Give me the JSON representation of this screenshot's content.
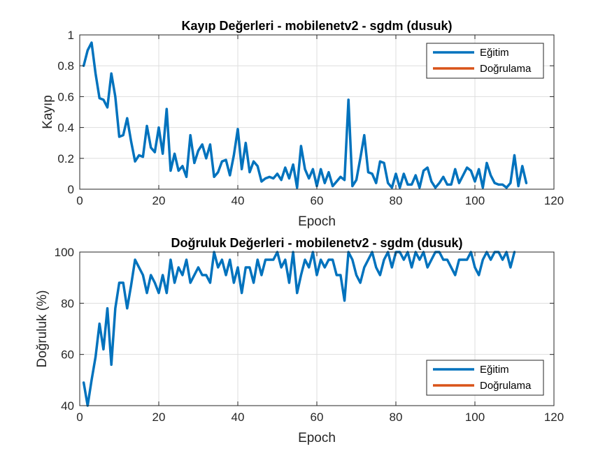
{
  "chart_data": [
    {
      "type": "line",
      "title": "Kayıp Değerleri - mobilenetv2 - sgdm (dusuk)",
      "xlabel": "Epoch",
      "ylabel": "Kayıp",
      "xlim": [
        0,
        120
      ],
      "ylim": [
        0,
        1
      ],
      "xticks": [
        "0",
        "20",
        "40",
        "60",
        "80",
        "100",
        "120"
      ],
      "yticks": [
        "0",
        "0.2",
        "0.4",
        "0.6",
        "0.8",
        "1"
      ],
      "grid": true,
      "legend_position": "top-right",
      "series": [
        {
          "name": "Eğitim",
          "color": "#0072BD",
          "values": [
            0.8,
            0.9,
            0.95,
            0.75,
            0.59,
            0.58,
            0.53,
            0.75,
            0.6,
            0.34,
            0.35,
            0.46,
            0.31,
            0.18,
            0.22,
            0.21,
            0.41,
            0.27,
            0.24,
            0.4,
            0.23,
            0.52,
            0.12,
            0.23,
            0.12,
            0.15,
            0.08,
            0.35,
            0.17,
            0.25,
            0.29,
            0.2,
            0.29,
            0.08,
            0.11,
            0.18,
            0.19,
            0.09,
            0.22,
            0.39,
            0.13,
            0.3,
            0.11,
            0.18,
            0.15,
            0.05,
            0.07,
            0.08,
            0.07,
            0.1,
            0.06,
            0.14,
            0.07,
            0.16,
            0.01,
            0.28,
            0.13,
            0.07,
            0.13,
            0.02,
            0.13,
            0.04,
            0.11,
            0.02,
            0.05,
            0.08,
            0.06,
            0.58,
            0.02,
            0.06,
            0.2,
            0.35,
            0.11,
            0.1,
            0.04,
            0.18,
            0.17,
            0.04,
            0.01,
            0.1,
            0.01,
            0.1,
            0.03,
            0.03,
            0.09,
            0.01,
            0.12,
            0.14,
            0.05,
            0.01,
            0.04,
            0.08,
            0.03,
            0.03,
            0.13,
            0.04,
            0.09,
            0.14,
            0.12,
            0.05,
            0.13,
            0.01,
            0.17,
            0.09,
            0.04,
            0.03,
            0.03,
            0.01,
            0.04,
            0.22,
            0.02,
            0.15,
            0.04
          ]
        },
        {
          "name": "Doğrulama",
          "color": "#D95319",
          "values": []
        }
      ]
    },
    {
      "type": "line",
      "title": "Doğruluk Değerleri - mobilenetv2 - sgdm (dusuk)",
      "xlabel": "Epoch",
      "ylabel": "Doğruluk (%)",
      "xlim": [
        0,
        120
      ],
      "ylim": [
        40,
        100
      ],
      "xticks": [
        "0",
        "20",
        "40",
        "60",
        "80",
        "100",
        "120"
      ],
      "yticks": [
        "40",
        "60",
        "80",
        "100"
      ],
      "grid": true,
      "legend_position": "bottom-right",
      "series": [
        {
          "name": "Eğitim",
          "color": "#0072BD",
          "values": [
            49,
            40,
            50,
            59,
            72,
            62,
            78,
            56,
            78,
            88,
            88,
            78,
            87,
            97,
            94,
            91,
            84,
            91,
            88,
            84,
            91,
            84,
            97,
            88,
            94,
            91,
            97,
            88,
            91,
            94,
            91,
            91,
            88,
            100,
            94,
            97,
            91,
            97,
            88,
            94,
            84,
            94,
            94,
            88,
            97,
            91,
            97,
            97,
            97,
            100,
            94,
            97,
            88,
            100,
            84,
            91,
            97,
            94,
            100,
            91,
            97,
            94,
            97,
            97,
            91,
            91,
            81,
            100,
            97,
            91,
            88,
            94,
            97,
            100,
            94,
            91,
            97,
            100,
            94,
            100,
            100,
            97,
            100,
            94,
            100,
            97,
            100,
            94,
            97,
            100,
            100,
            97,
            97,
            94,
            91,
            97,
            97,
            97,
            100,
            94,
            91,
            97,
            100,
            97,
            100,
            100,
            97,
            100,
            94,
            100
          ]
        },
        {
          "name": "Doğrulama",
          "color": "#D95319",
          "values": []
        }
      ]
    }
  ]
}
